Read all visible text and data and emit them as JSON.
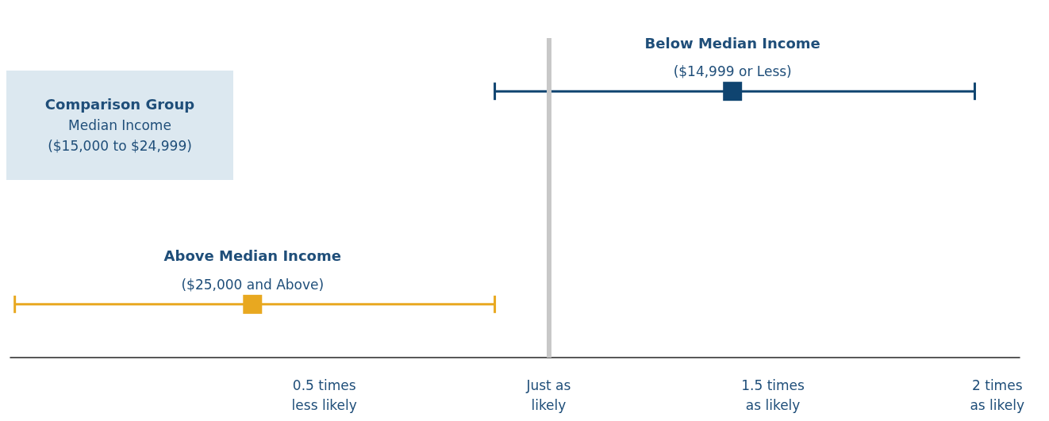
{
  "chart_data": {
    "type": "scatter",
    "orientation": "horizontal",
    "categories": [
      null,
      null,
      null
    ],
    "series": [
      {
        "name": "Below Median Income",
        "color": "#0f4470",
        "values": [
          1.41,
          null,
          null
        ],
        "errors": [
          [
            0.88,
            1.95
          ],
          null,
          null
        ]
      },
      {
        "name": "Above Median Income",
        "color": "#e8a820",
        "values": [
          null,
          null,
          0.34
        ],
        "errors": [
          null,
          null,
          [
            -0.19,
            0.88
          ]
        ]
      }
    ],
    "marker": "square",
    "grid": false,
    "tick_labels": "x",
    "xlim": [
      -0.2,
      2.05
    ],
    "xticks": [
      {
        "value": 0.5,
        "label": "0.5 times\nless likely"
      },
      {
        "value": 1,
        "label": "Just as\nlikely"
      },
      {
        "value": 1.5,
        "label": "1.5 times\nas likely"
      },
      {
        "value": 2,
        "label": "2 times\nas likely"
      }
    ],
    "ref_lines": [
      {
        "axis": "x",
        "value": 1,
        "color": "#c8c8c8"
      }
    ],
    "annotations": [
      "($14,999 or Less)",
      "($25,000 and Above)",
      "Comparison Group",
      "Median Income",
      "($15,000 to $24,999)"
    ]
  }
}
